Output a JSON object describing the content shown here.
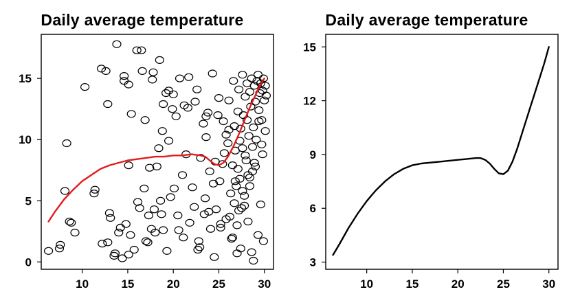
{
  "chart_data": [
    {
      "type": "scatter",
      "title": "Daily average temperature",
      "xlabel": "",
      "ylabel": "",
      "xlim": [
        5.5,
        31.0
      ],
      "ylim": [
        -0.6,
        18.6
      ],
      "xticks": [
        "10",
        "15",
        "20",
        "25",
        "30"
      ],
      "yticks": [
        "0",
        "5",
        "10",
        "15"
      ],
      "grid": false,
      "colors": {
        "points": "#000000",
        "smooth_line": "#e41a1c"
      },
      "points": {
        "x": [
          6.3,
          7.5,
          7.6,
          8.1,
          8.3,
          8.6,
          8.8,
          9.2,
          10.3,
          11.3,
          11.4,
          12.1,
          12.6,
          12.8,
          12.8,
          13.0,
          13.5,
          13.6,
          13.8,
          14.0,
          14.2,
          14.6,
          14.6,
          14.8,
          15.1,
          15.1,
          15.1,
          15.4,
          15.7,
          16.0,
          16.3,
          16.5,
          16.8,
          16.9,
          17.0,
          17.3,
          17.4,
          17.6,
          17.8,
          17.9,
          18.0,
          18.2,
          18.4,
          18.5,
          18.6,
          18.8,
          18.9,
          19.2,
          19.5,
          19.5,
          19.7,
          19.9,
          20.1,
          20.3,
          20.5,
          20.7,
          21.0,
          21.1,
          21.4,
          21.6,
          21.7,
          22.1,
          22.3,
          22.6,
          22.8,
          22.9,
          23.0,
          23.3,
          23.4,
          23.5,
          23.6,
          23.8,
          24.0,
          24.1,
          24.3,
          24.4,
          24.6,
          24.7,
          25.0,
          25.1,
          25.2,
          25.5,
          25.6,
          25.8,
          26.0,
          26.1,
          26.2,
          26.3,
          26.5,
          26.6,
          26.7,
          26.8,
          26.9,
          27.0,
          27.1,
          27.1,
          27.2,
          27.3,
          27.4,
          27.5,
          27.6,
          27.6,
          27.7,
          27.8,
          27.9,
          28.0,
          28.1,
          28.1,
          28.2,
          28.3,
          28.4,
          28.4,
          28.5,
          28.6,
          28.7,
          28.8,
          28.9,
          29.0,
          29.1,
          29.2,
          29.3,
          29.4,
          29.5,
          29.6,
          29.7,
          29.8,
          29.9,
          30.0,
          30.1,
          30.2,
          28.8,
          29.3,
          29.6,
          29.9,
          28.2,
          28.6,
          27.4,
          27.8,
          26.5,
          27.0,
          25.8,
          26.4,
          24.5,
          25.2,
          23.9,
          22.7,
          21.8,
          20.6,
          19.3,
          18.7,
          17.2,
          16.1,
          15.3,
          14.4,
          13.1,
          12.2,
          28.9,
          29.7,
          30.1,
          29.4,
          28.7,
          27.9,
          27.3,
          26.8,
          26.1,
          25.4,
          24.9,
          23.6,
          22.4,
          21.2,
          20.0,
          18.9,
          17.7,
          16.6,
          27.6,
          28.4,
          29.0,
          29.8,
          26.7,
          27.2
        ],
        "y": [
          0.9,
          1.1,
          1.4,
          5.8,
          9.7,
          3.3,
          3.2,
          2.4,
          14.3,
          5.6,
          5.9,
          15.8,
          15.6,
          12.9,
          1.6,
          4.0,
          0.5,
          0.7,
          17.8,
          2.4,
          2.8,
          15.2,
          14.8,
          3.1,
          14.5,
          0.6,
          7.9,
          12.1,
          1.0,
          17.3,
          4.4,
          17.3,
          6.0,
          11.6,
          1.7,
          3.8,
          7.7,
          2.7,
          15.5,
          4.3,
          2.4,
          7.8,
          9.3,
          16.5,
          5.0,
          10.7,
          2.6,
          13.8,
          9.9,
          14.0,
          5.3,
          12.5,
          6.0,
          11.9,
          3.8,
          15.0,
          7.1,
          2.0,
          8.8,
          12.6,
          15.1,
          6.1,
          4.5,
          14.1,
          1.7,
          1.2,
          8.5,
          11.3,
          3.9,
          5.2,
          10.2,
          12.2,
          7.4,
          2.7,
          15.4,
          6.4,
          8.2,
          4.3,
          13.4,
          6.6,
          3.1,
          11.5,
          8.9,
          10.4,
          9.7,
          13.2,
          3.7,
          5.6,
          7.9,
          14.8,
          11.1,
          9.1,
          6.2,
          3.0,
          12.3,
          7.6,
          14.1,
          6.8,
          10.9,
          4.4,
          9.3,
          15.3,
          12.0,
          5.4,
          13.5,
          8.3,
          11.6,
          14.6,
          7.1,
          10.3,
          13.9,
          6.2,
          12.7,
          15.0,
          9.4,
          11.0,
          14.4,
          13.1,
          10.0,
          14.8,
          15.3,
          12.4,
          13.8,
          14.6,
          11.6,
          14.0,
          15.0,
          13.2,
          14.4,
          13.6,
          0.1,
          2.2,
          4.7,
          1.7,
          3.3,
          0.8,
          1.1,
          4.6,
          2.0,
          0.7,
          3.5,
          1.9,
          0.4,
          2.8,
          4.1,
          1.0,
          3.2,
          2.6,
          0.9,
          3.9,
          1.6,
          4.9,
          2.2,
          0.3,
          3.6,
          1.5,
          8.1,
          9.6,
          10.7,
          11.5,
          7.4,
          8.7,
          9.9,
          6.6,
          10.8,
          8.0,
          12.0,
          11.9,
          13.1,
          12.8,
          13.7,
          12.9,
          14.9,
          15.6,
          5.8,
          6.9,
          7.8,
          8.8,
          4.8,
          4.2
        ]
      },
      "smooth_line": {
        "x": [
          6.3,
          7.0,
          8.0,
          9.0,
          10.0,
          11.0,
          12.0,
          13.0,
          14.0,
          15.0,
          16.0,
          17.0,
          18.0,
          19.0,
          20.0,
          21.0,
          22.0,
          23.0,
          23.5,
          24.0,
          24.5,
          25.0,
          25.5,
          26.0,
          26.5,
          27.0,
          27.5,
          28.0,
          28.5,
          29.0,
          29.5,
          30.0
        ],
        "y": [
          3.3,
          4.1,
          5.1,
          5.9,
          6.6,
          7.1,
          7.6,
          7.9,
          8.1,
          8.3,
          8.4,
          8.5,
          8.6,
          8.6,
          8.7,
          8.7,
          8.8,
          8.7,
          8.6,
          8.3,
          8.0,
          7.9,
          8.1,
          8.6,
          9.3,
          10.1,
          11.0,
          11.9,
          12.8,
          13.6,
          14.4,
          15.0
        ]
      }
    },
    {
      "type": "line",
      "title": "Daily average temperature",
      "xlabel": "",
      "ylabel": "",
      "xlim": [
        5.5,
        31.0
      ],
      "ylim": [
        2.6,
        15.7
      ],
      "xticks": [
        "10",
        "15",
        "20",
        "25",
        "30"
      ],
      "yticks": [
        "3",
        "6",
        "9",
        "12",
        "15"
      ],
      "grid": false,
      "colors": {
        "line": "#000000"
      },
      "series": [
        {
          "x": [
            6.3,
            7.0,
            8.0,
            9.0,
            10.0,
            11.0,
            12.0,
            13.0,
            14.0,
            15.0,
            16.0,
            17.0,
            18.0,
            19.0,
            20.0,
            21.0,
            22.0,
            22.5,
            23.0,
            23.5,
            24.0,
            24.5,
            25.0,
            25.5,
            26.0,
            26.5,
            27.0,
            27.5,
            28.0,
            28.5,
            29.0,
            29.5,
            30.0
          ],
          "y": [
            3.4,
            4.0,
            4.9,
            5.7,
            6.4,
            7.0,
            7.5,
            7.9,
            8.2,
            8.4,
            8.5,
            8.55,
            8.6,
            8.65,
            8.7,
            8.75,
            8.8,
            8.8,
            8.7,
            8.5,
            8.2,
            7.95,
            7.9,
            8.1,
            8.6,
            9.3,
            10.1,
            10.9,
            11.7,
            12.5,
            13.3,
            14.1,
            15.0
          ]
        }
      ]
    }
  ]
}
